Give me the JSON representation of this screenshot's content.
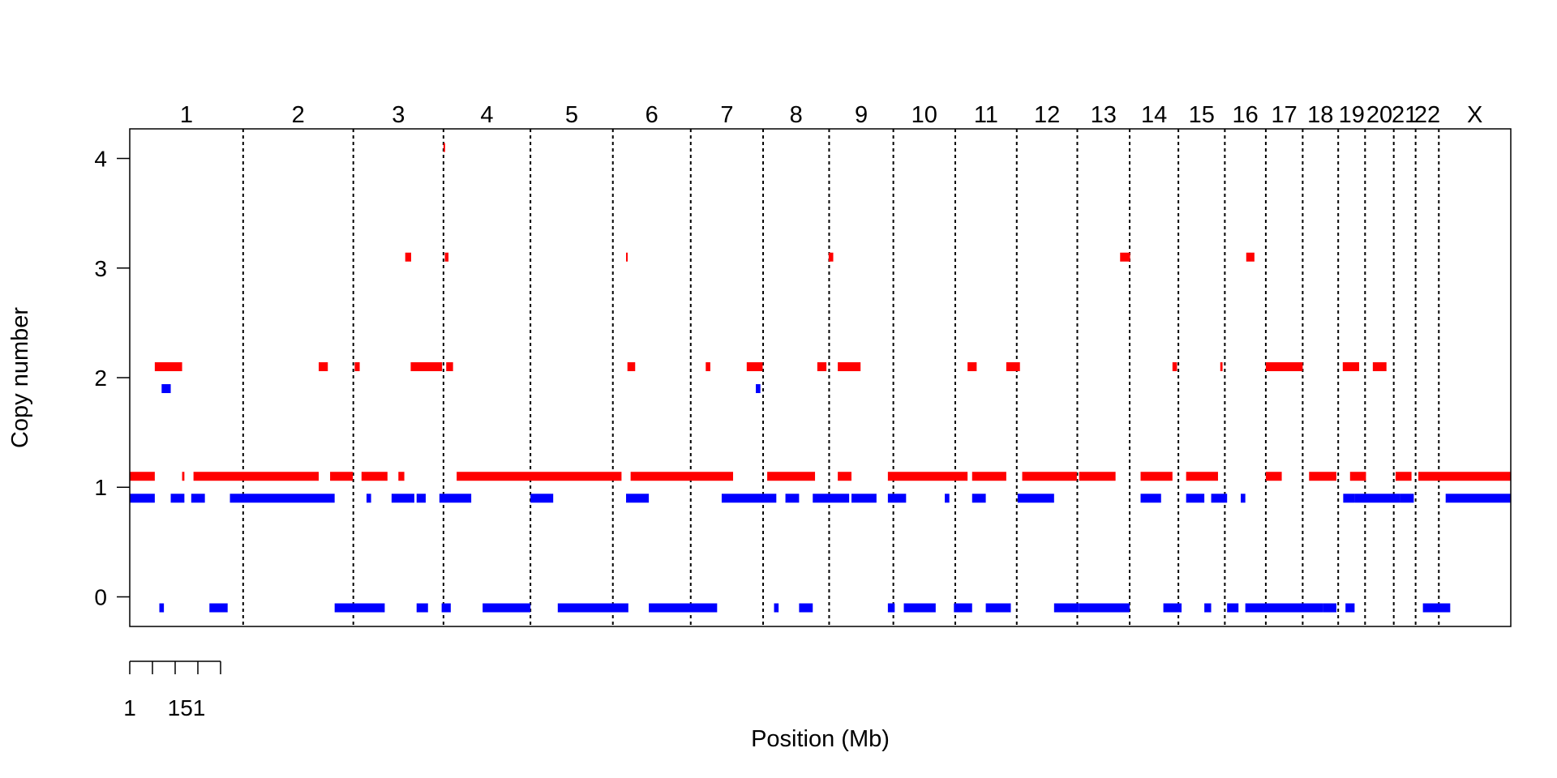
{
  "chart_data": {
    "type": "segments",
    "xlabel": "Position (Mb)",
    "ylabel": "Copy number",
    "ylim": [
      -0.27,
      4.27
    ],
    "yticks": [
      0,
      1,
      2,
      3,
      4
    ],
    "grid": false,
    "legend": "none",
    "colors": {
      "major": "#ff0000",
      "minor": "#0000ff",
      "separator": "#000000"
    },
    "scale_bar": {
      "ticks": 5,
      "labels": [
        "1",
        "151"
      ]
    },
    "x_total_mb": 3033,
    "chromosomes": [
      {
        "name": "1",
        "start": 0,
        "end": 249
      },
      {
        "name": "2",
        "start": 249,
        "end": 491
      },
      {
        "name": "3",
        "start": 491,
        "end": 689
      },
      {
        "name": "4",
        "start": 689,
        "end": 880
      },
      {
        "name": "5",
        "start": 880,
        "end": 1061
      },
      {
        "name": "6",
        "start": 1061,
        "end": 1232
      },
      {
        "name": "7",
        "start": 1232,
        "end": 1391
      },
      {
        "name": "8",
        "start": 1391,
        "end": 1536
      },
      {
        "name": "9",
        "start": 1536,
        "end": 1677
      },
      {
        "name": "10",
        "start": 1677,
        "end": 1813
      },
      {
        "name": "11",
        "start": 1813,
        "end": 1948
      },
      {
        "name": "12",
        "start": 1948,
        "end": 2081
      },
      {
        "name": "13",
        "start": 2081,
        "end": 2196
      },
      {
        "name": "14",
        "start": 2196,
        "end": 2303
      },
      {
        "name": "15",
        "start": 2303,
        "end": 2405
      },
      {
        "name": "16",
        "start": 2405,
        "end": 2495
      },
      {
        "name": "17",
        "start": 2495,
        "end": 2576
      },
      {
        "name": "18",
        "start": 2576,
        "end": 2654
      },
      {
        "name": "19",
        "start": 2654,
        "end": 2713
      },
      {
        "name": "20",
        "start": 2713,
        "end": 2776
      },
      {
        "name": "21",
        "start": 2776,
        "end": 2824
      },
      {
        "name": "22",
        "start": 2824,
        "end": 2875
      },
      {
        "name": "X",
        "start": 2875,
        "end": 3033
      }
    ],
    "series": [
      {
        "name": "",
        "color": "#ff0000",
        "offset": 0.1,
        "segments": [
          {
            "x0": 0,
            "x1": 55,
            "y": 1
          },
          {
            "x0": 55,
            "x1": 115,
            "y": 2
          },
          {
            "x0": 115,
            "x1": 120,
            "y": 1
          },
          {
            "x0": 140,
            "x1": 415,
            "y": 1
          },
          {
            "x0": 415,
            "x1": 435,
            "y": 2
          },
          {
            "x0": 440,
            "x1": 490,
            "y": 1
          },
          {
            "x0": 494,
            "x1": 505,
            "y": 2
          },
          {
            "x0": 509,
            "x1": 566,
            "y": 1
          },
          {
            "x0": 590,
            "x1": 603,
            "y": 1
          },
          {
            "x0": 605,
            "x1": 618,
            "y": 3
          },
          {
            "x0": 617,
            "x1": 686,
            "y": 2
          },
          {
            "x0": 692,
            "x1": 700,
            "y": 3
          },
          {
            "x0": 689,
            "x1": 692,
            "y": 4
          },
          {
            "x0": 695,
            "x1": 710,
            "y": 2
          },
          {
            "x0": 718,
            "x1": 1080,
            "y": 1
          },
          {
            "x0": 1093,
            "x1": 1110,
            "y": 2
          },
          {
            "x0": 1090,
            "x1": 1093,
            "y": 3
          },
          {
            "x0": 1100,
            "x1": 1325,
            "y": 1
          },
          {
            "x0": 1265,
            "x1": 1275,
            "y": 2
          },
          {
            "x0": 1355,
            "x1": 1390,
            "y": 2
          },
          {
            "x0": 1400,
            "x1": 1505,
            "y": 1
          },
          {
            "x0": 1510,
            "x1": 1530,
            "y": 2
          },
          {
            "x0": 1555,
            "x1": 1585,
            "y": 1
          },
          {
            "x0": 1555,
            "x1": 1605,
            "y": 2
          },
          {
            "x0": 1535,
            "x1": 1545,
            "y": 3
          },
          {
            "x0": 1665,
            "x1": 1840,
            "y": 1
          },
          {
            "x0": 1840,
            "x1": 1860,
            "y": 2
          },
          {
            "x0": 1850,
            "x1": 1925,
            "y": 1
          },
          {
            "x0": 1925,
            "x1": 1955,
            "y": 2
          },
          {
            "x0": 1960,
            "x1": 2080,
            "y": 1
          },
          {
            "x0": 2085,
            "x1": 2165,
            "y": 1
          },
          {
            "x0": 2175,
            "x1": 2197,
            "y": 3
          },
          {
            "x0": 2220,
            "x1": 2290,
            "y": 1
          },
          {
            "x0": 2290,
            "x1": 2300,
            "y": 2
          },
          {
            "x0": 2320,
            "x1": 2390,
            "y": 1
          },
          {
            "x0": 2395,
            "x1": 2400,
            "y": 2
          },
          {
            "x0": 2452,
            "x1": 2470,
            "y": 3
          },
          {
            "x0": 2495,
            "x1": 2576,
            "y": 2
          },
          {
            "x0": 2495,
            "x1": 2530,
            "y": 1
          },
          {
            "x0": 2590,
            "x1": 2650,
            "y": 1
          },
          {
            "x0": 2664,
            "x1": 2700,
            "y": 2
          },
          {
            "x0": 2680,
            "x1": 2715,
            "y": 1
          },
          {
            "x0": 2730,
            "x1": 2760,
            "y": 2
          },
          {
            "x0": 2780,
            "x1": 2815,
            "y": 1
          },
          {
            "x0": 2830,
            "x1": 3033,
            "y": 1
          }
        ]
      },
      {
        "name": "",
        "color": "#0000ff",
        "offset": -0.1,
        "segments": [
          {
            "x0": 0,
            "x1": 55,
            "y": 1
          },
          {
            "x0": 65,
            "x1": 75,
            "y": 0
          },
          {
            "x0": 70,
            "x1": 90,
            "y": 2
          },
          {
            "x0": 90,
            "x1": 120,
            "y": 1
          },
          {
            "x0": 135,
            "x1": 165,
            "y": 1
          },
          {
            "x0": 175,
            "x1": 215,
            "y": 0
          },
          {
            "x0": 220,
            "x1": 450,
            "y": 1
          },
          {
            "x0": 450,
            "x1": 560,
            "y": 0
          },
          {
            "x0": 520,
            "x1": 530,
            "y": 1
          },
          {
            "x0": 575,
            "x1": 625,
            "y": 1
          },
          {
            "x0": 630,
            "x1": 650,
            "y": 1
          },
          {
            "x0": 630,
            "x1": 655,
            "y": 0
          },
          {
            "x0": 680,
            "x1": 750,
            "y": 1
          },
          {
            "x0": 685,
            "x1": 705,
            "y": 0
          },
          {
            "x0": 775,
            "x1": 880,
            "y": 0
          },
          {
            "x0": 880,
            "x1": 930,
            "y": 1
          },
          {
            "x0": 940,
            "x1": 1095,
            "y": 0
          },
          {
            "x0": 1090,
            "x1": 1140,
            "y": 1
          },
          {
            "x0": 1140,
            "x1": 1290,
            "y": 0
          },
          {
            "x0": 1300,
            "x1": 1420,
            "y": 1
          },
          {
            "x0": 1375,
            "x1": 1385,
            "y": 2
          },
          {
            "x0": 1415,
            "x1": 1425,
            "y": 0
          },
          {
            "x0": 1440,
            "x1": 1470,
            "y": 1
          },
          {
            "x0": 1470,
            "x1": 1500,
            "y": 0
          },
          {
            "x0": 1500,
            "x1": 1580,
            "y": 1
          },
          {
            "x0": 1585,
            "x1": 1640,
            "y": 1
          },
          {
            "x0": 1665,
            "x1": 1680,
            "y": 0
          },
          {
            "x0": 1665,
            "x1": 1705,
            "y": 1
          },
          {
            "x0": 1700,
            "x1": 1770,
            "y": 0
          },
          {
            "x0": 1790,
            "x1": 1800,
            "y": 1
          },
          {
            "x0": 1810,
            "x1": 1850,
            "y": 0
          },
          {
            "x0": 1850,
            "x1": 1880,
            "y": 1
          },
          {
            "x0": 1880,
            "x1": 1935,
            "y": 0
          },
          {
            "x0": 1950,
            "x1": 2030,
            "y": 1
          },
          {
            "x0": 2030,
            "x1": 2085,
            "y": 0
          },
          {
            "x0": 2085,
            "x1": 2196,
            "y": 0
          },
          {
            "x0": 2220,
            "x1": 2265,
            "y": 1
          },
          {
            "x0": 2270,
            "x1": 2310,
            "y": 0
          },
          {
            "x0": 2320,
            "x1": 2360,
            "y": 1
          },
          {
            "x0": 2360,
            "x1": 2375,
            "y": 0
          },
          {
            "x0": 2375,
            "x1": 2410,
            "y": 1
          },
          {
            "x0": 2410,
            "x1": 2435,
            "y": 0
          },
          {
            "x0": 2440,
            "x1": 2450,
            "y": 1
          },
          {
            "x0": 2450,
            "x1": 2620,
            "y": 0
          },
          {
            "x0": 2620,
            "x1": 2650,
            "y": 0
          },
          {
            "x0": 2665,
            "x1": 2690,
            "y": 1
          },
          {
            "x0": 2670,
            "x1": 2690,
            "y": 0
          },
          {
            "x0": 2690,
            "x1": 2790,
            "y": 1
          },
          {
            "x0": 2790,
            "x1": 2820,
            "y": 1
          },
          {
            "x0": 2840,
            "x1": 2900,
            "y": 0
          },
          {
            "x0": 2890,
            "x1": 3033,
            "y": 1
          }
        ]
      }
    ]
  }
}
